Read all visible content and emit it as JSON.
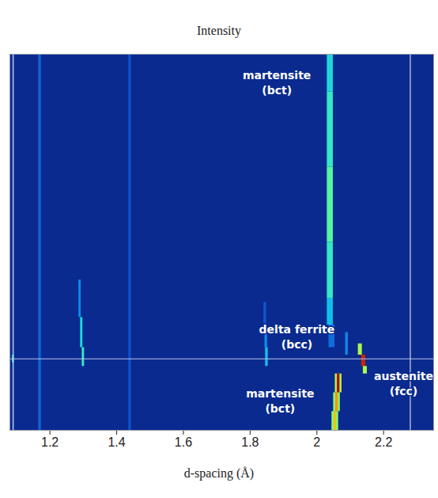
{
  "chart_data": {
    "type": "heatmap",
    "title": "Intensity",
    "x_label": "d-spacing (Å)",
    "xlim": [
      1.08,
      2.35
    ],
    "xticks": [
      1.2,
      1.4,
      1.6,
      1.8,
      2,
      2.2
    ],
    "ylim": [
      0,
      100
    ],
    "tick_labels": "x",
    "grid": false,
    "zlim": [
      0,
      100
    ],
    "streaks": [
      {
        "width": 0.006,
        "cells": [
          [
            1.09,
            0,
            100,
            12
          ],
          [
            1.09,
            18,
            20,
            40
          ]
        ]
      },
      {
        "width": 0.008,
        "cells": [
          [
            1.17,
            0,
            100,
            18
          ]
        ]
      },
      {
        "width": 0.008,
        "cells": [
          [
            1.44,
            0,
            100,
            14
          ]
        ]
      },
      {
        "width": 0.018,
        "cells": [
          [
            2.04,
            90,
            100,
            40
          ],
          [
            2.04,
            70,
            90,
            45
          ],
          [
            2.04,
            50,
            70,
            50
          ],
          [
            2.04,
            35,
            50,
            45
          ],
          [
            2.04,
            28,
            35,
            35
          ],
          [
            2.045,
            22,
            28,
            20
          ]
        ]
      },
      {
        "width": 0.008,
        "cells": [
          [
            1.845,
            28,
            34,
            15
          ],
          [
            1.848,
            22,
            28,
            25
          ],
          [
            1.85,
            17,
            22,
            35
          ]
        ]
      },
      {
        "width": 0.007,
        "cells": [
          [
            1.29,
            30,
            40,
            25
          ],
          [
            1.295,
            22,
            30,
            40
          ],
          [
            1.3,
            17,
            22,
            45
          ]
        ]
      },
      {
        "width": 0.008,
        "cells": [
          [
            2.09,
            20,
            26,
            25
          ]
        ]
      },
      {
        "width": 0.012,
        "cells": [
          [
            2.13,
            20,
            23,
            60
          ],
          [
            2.14,
            17,
            20,
            90
          ],
          [
            2.145,
            15,
            17,
            60
          ]
        ]
      },
      {
        "width": 0.02,
        "cells": [
          [
            2.065,
            10,
            15,
            60
          ],
          [
            2.06,
            5,
            10,
            55
          ],
          [
            2.055,
            0,
            5,
            55
          ]
        ]
      },
      {
        "width": 0.008,
        "cells": [
          [
            2.065,
            10,
            15,
            95
          ],
          [
            2.06,
            5,
            10,
            75
          ],
          [
            2.055,
            0,
            5,
            70
          ]
        ]
      }
    ],
    "hlines": [
      {
        "y": 19,
        "line_style": "dashed"
      }
    ],
    "vlines": [
      {
        "x": 1.09,
        "line_style": "solid"
      },
      {
        "x": 2.28,
        "line_style": "solid"
      }
    ],
    "annotations": [
      {
        "text": [
          "martensite",
          "(bct)"
        ],
        "x": 1.88,
        "y": 92.6
      },
      {
        "text": [
          "delta ferrite",
          "(bcc)"
        ],
        "x": 1.94,
        "y": 25
      },
      {
        "text": [
          "austenite",
          "(fcc)"
        ],
        "x": 2.26,
        "y": 12.6
      },
      {
        "text": [
          "martensite",
          "(bct)"
        ],
        "x": 1.89,
        "y": 8
      }
    ]
  }
}
